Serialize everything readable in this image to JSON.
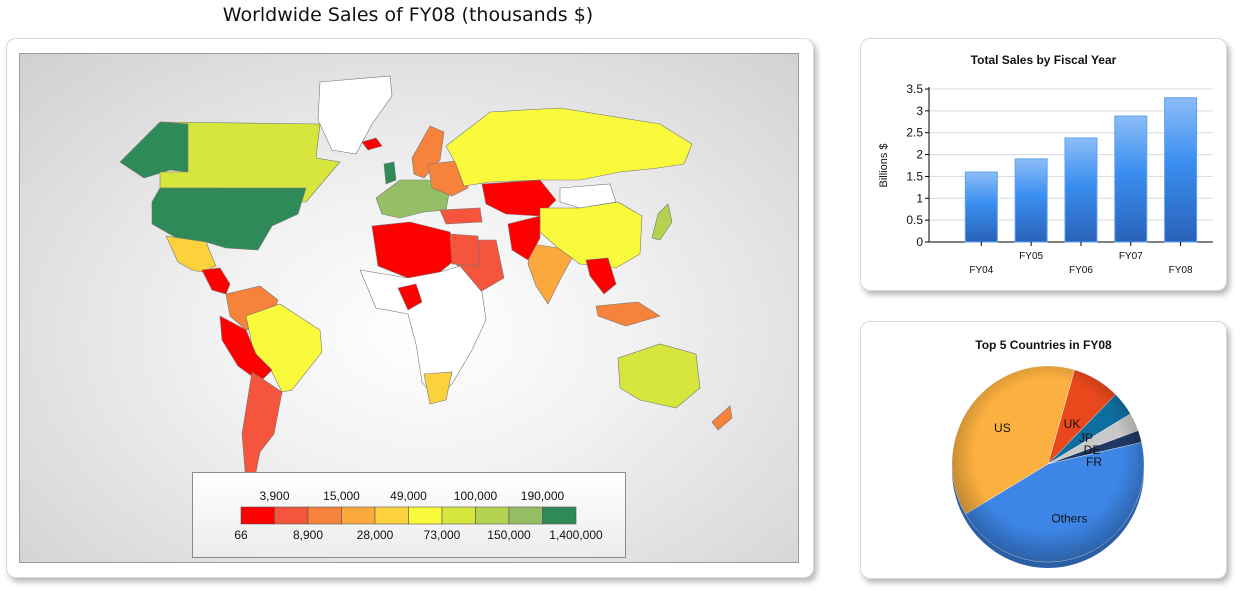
{
  "map": {
    "title": "Worldwide Sales of FY08 (thousands $)",
    "legend": {
      "upper_labels": [
        "3,900",
        "15,000",
        "49,000",
        "100,000",
        "190,000"
      ],
      "lower_labels": [
        "66",
        "8,900",
        "28,000",
        "73,000",
        "150,000",
        "1,400,000"
      ],
      "colors": [
        "#ff0000",
        "#f5553c",
        "#f6823c",
        "#fba93c",
        "#fbd23c",
        "#fafa3c",
        "#d7e63c",
        "#b4d250",
        "#96be64",
        "#2e8b57"
      ]
    }
  },
  "chart_data": [
    {
      "type": "bar",
      "title": "Total Sales by Fiscal Year",
      "ylabel": "Billions $",
      "categories": [
        "FY04",
        "FY05",
        "FY06",
        "FY07",
        "FY08"
      ],
      "values": [
        1.6,
        1.9,
        2.38,
        2.88,
        3.3
      ],
      "ylim": [
        0,
        3.5
      ],
      "yticks": [
        "0",
        "0.5",
        "1",
        "1.5",
        "2",
        "2.5",
        "3",
        "3.5"
      ],
      "grid": true,
      "color": "#3a8ef0"
    },
    {
      "type": "pie",
      "title": "Top 5 Countries in FY08",
      "labels": [
        "US",
        "UK",
        "JP",
        "DE",
        "FR",
        "Others"
      ],
      "values": [
        38,
        8,
        4,
        3,
        2,
        45
      ],
      "colors": [
        "#fbb040",
        "#e8481c",
        "#0f6ea0",
        "#c8c8c8",
        "#1f3864",
        "#3d86e8"
      ]
    }
  ]
}
